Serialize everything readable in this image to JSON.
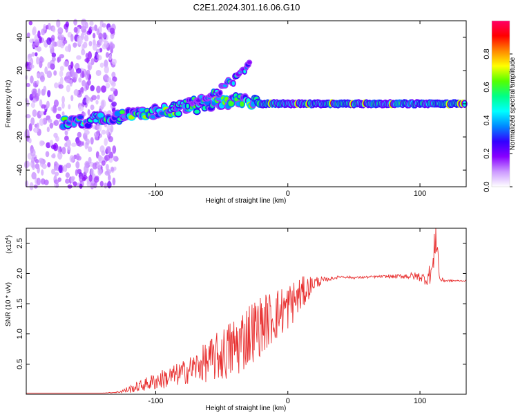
{
  "title": "C2E1.2024.301.16.06.G10",
  "chart_data": [
    {
      "type": "heatmap",
      "xlabel": "Height of straight line (km)",
      "ylabel": "Frequency (Hz)",
      "xlim": [
        -198,
        135
      ],
      "ylim": [
        -50,
        50
      ],
      "xticks": [
        -100,
        0,
        100
      ],
      "xtick_labels": [
        "-100",
        "0",
        "100"
      ],
      "yticks": [
        -40,
        -20,
        0,
        20,
        40
      ],
      "ytick_labels": [
        "-40",
        "-20",
        "0",
        "20",
        "40"
      ],
      "colorbar": {
        "label": "Normalized spectral amplitude",
        "range": [
          0,
          1
        ],
        "ticks": [
          0.0,
          0.2,
          0.4,
          0.6,
          0.8
        ],
        "tick_labels": [
          "0.0",
          "0.2",
          "0.4",
          "0.6",
          "0.8"
        ],
        "colors": [
          "#ffffff",
          "#cc99ff",
          "#8800ff",
          "#3300ff",
          "#0088ff",
          "#00ffff",
          "#00ff88",
          "#55ff00",
          "#ffff00",
          "#ff8800",
          "#ff0000",
          "#ff0066"
        ]
      },
      "features": [
        {
          "name": "noise",
          "x_range": [
            -198,
            -130
          ],
          "freq_range": [
            -50,
            50
          ],
          "amplitude": 0.1
        },
        {
          "name": "main_trace",
          "points": [
            [
              -170,
              -12
            ],
            [
              -150,
              -10
            ],
            [
              -130,
              -8
            ],
            [
              -110,
              -6
            ],
            [
              -90,
              -4
            ],
            [
              -70,
              -2
            ],
            [
              -50,
              1
            ],
            [
              -30,
              2
            ],
            [
              -20,
              0
            ],
            [
              0,
              0
            ],
            [
              50,
              0
            ],
            [
              100,
              0
            ],
            [
              135,
              0
            ]
          ],
          "amplitude": 0.7
        },
        {
          "name": "upper_branch",
          "points": [
            [
              -90,
              -3
            ],
            [
              -70,
              2
            ],
            [
              -55,
              6
            ],
            [
              -45,
              12
            ],
            [
              -35,
              18
            ],
            [
              -28,
              24
            ]
          ],
          "amplitude": 0.3
        }
      ]
    },
    {
      "type": "line",
      "xlabel": "Height of straight line (km)",
      "ylabel": "SNR (10 * v/v)",
      "multiplier_label": "(x10",
      "multiplier_exponent": "4",
      "multiplier_close": ")",
      "xlim": [
        -198,
        135
      ],
      "ylim": [
        0,
        2.75
      ],
      "xticks": [
        -100,
        0,
        100
      ],
      "xtick_labels": [
        "-100",
        "0",
        "100"
      ],
      "yticks": [
        0.5,
        1.0,
        1.5,
        2.0,
        2.5
      ],
      "ytick_labels": [
        "0.5",
        "1.0",
        "1.5",
        "2.0",
        "2.5"
      ],
      "line_color": "#e83030",
      "series": [
        {
          "x": [
            -198,
            -180,
            -160,
            -140,
            -130,
            -120,
            -110,
            -100,
            -90,
            -80,
            -70,
            -60,
            -50,
            -40,
            -30,
            -20,
            -10,
            0,
            10,
            20,
            30,
            40,
            50,
            60,
            70,
            80,
            90,
            100,
            105,
            110,
            112,
            115,
            120,
            135
          ],
          "y": [
            0.02,
            0.02,
            0.02,
            0.02,
            0.03,
            0.08,
            0.15,
            0.22,
            0.28,
            0.35,
            0.45,
            0.55,
            0.65,
            0.78,
            1.0,
            1.15,
            1.3,
            1.45,
            1.65,
            1.85,
            1.9,
            1.95,
            1.93,
            1.94,
            1.95,
            1.95,
            1.96,
            1.95,
            1.9,
            2.1,
            2.75,
            1.9,
            1.88,
            1.88
          ],
          "noise_amplitude": [
            0,
            0,
            0,
            0,
            0.01,
            0.06,
            0.1,
            0.15,
            0.18,
            0.2,
            0.25,
            0.35,
            0.45,
            0.55,
            0.55,
            0.5,
            0.45,
            0.4,
            0.3,
            0.12,
            0.03,
            0.02,
            0.02,
            0.02,
            0.02,
            0.03,
            0.05,
            0.08,
            0.1,
            0.25,
            0.4,
            0.05,
            0.02,
            0.01
          ]
        }
      ]
    }
  ]
}
